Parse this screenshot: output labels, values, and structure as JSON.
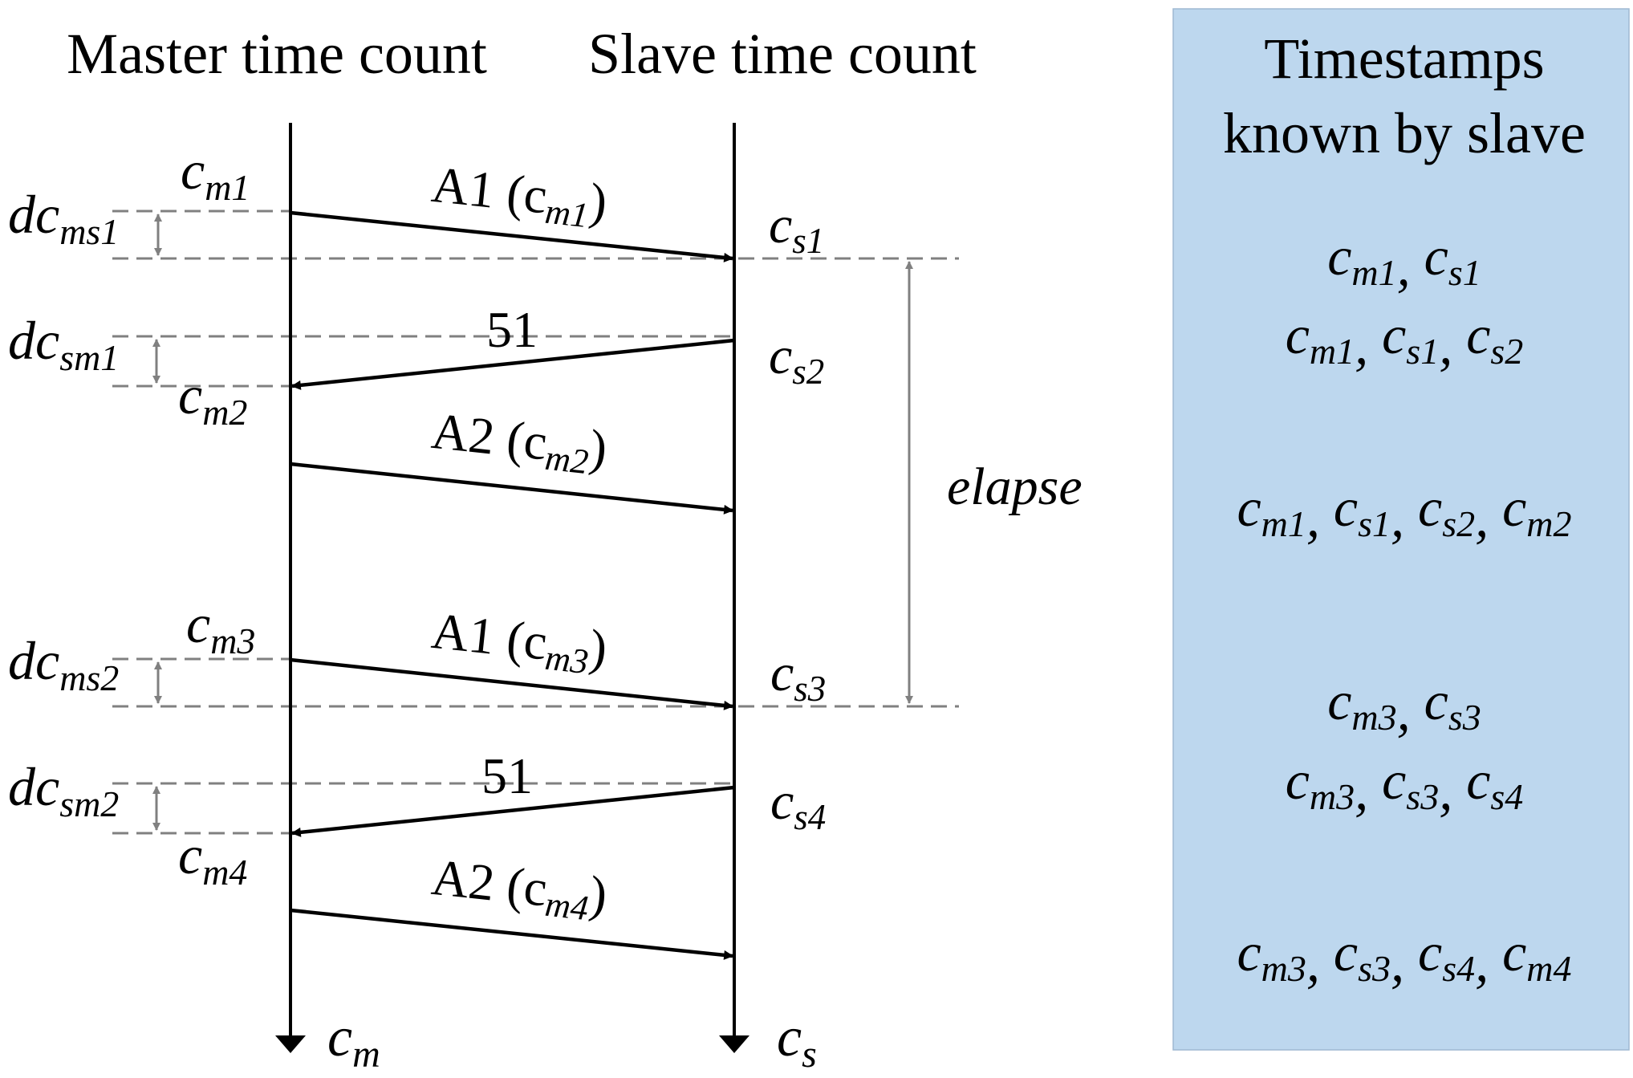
{
  "headers": {
    "master": "Master time count",
    "slave": "Slave time count"
  },
  "panel": {
    "title_line1": "Timestamps",
    "title_line2": "known by slave",
    "fill": "#bdd7ee",
    "rows": [
      [
        [
          "c",
          "m1"
        ],
        [
          "c",
          "s1"
        ]
      ],
      [
        [
          "c",
          "m1"
        ],
        [
          "c",
          "s1"
        ],
        [
          "c",
          "s2"
        ]
      ],
      [
        [
          "c",
          "m1"
        ],
        [
          "c",
          "s1"
        ],
        [
          "c",
          "s2"
        ],
        [
          "c",
          "m2"
        ]
      ],
      [
        [
          "c",
          "m3"
        ],
        [
          "c",
          "s3"
        ]
      ],
      [
        [
          "c",
          "m3"
        ],
        [
          "c",
          "s3"
        ],
        [
          "c",
          "s4"
        ]
      ],
      [
        [
          "c",
          "m3"
        ],
        [
          "c",
          "s3"
        ],
        [
          "c",
          "s4"
        ],
        [
          "c",
          "m4"
        ]
      ]
    ]
  },
  "axes": {
    "master_end": {
      "base": "c",
      "sub": "m"
    },
    "slave_end": {
      "base": "c",
      "sub": "s"
    }
  },
  "messages": [
    {
      "name": "A1",
      "arg_base": "c",
      "arg_sub": "m1",
      "direction": "to-slave"
    },
    {
      "name": "51",
      "direction": "to-master"
    },
    {
      "name": "A2",
      "arg_base": "c",
      "arg_sub": "m2",
      "direction": "to-slave"
    },
    {
      "name": "A1",
      "arg_base": "c",
      "arg_sub": "m3",
      "direction": "to-slave"
    },
    {
      "name": "51",
      "direction": "to-master"
    },
    {
      "name": "A2",
      "arg_base": "c",
      "arg_sub": "m4",
      "direction": "to-slave"
    }
  ],
  "master_stamps": [
    {
      "base": "c",
      "sub": "m1"
    },
    {
      "base": "c",
      "sub": "m2"
    },
    {
      "base": "c",
      "sub": "m3"
    },
    {
      "base": "c",
      "sub": "m4"
    }
  ],
  "slave_stamps": [
    {
      "base": "c",
      "sub": "s1"
    },
    {
      "base": "c",
      "sub": "s2"
    },
    {
      "base": "c",
      "sub": "s3"
    },
    {
      "base": "c",
      "sub": "s4"
    }
  ],
  "delays": [
    {
      "base": "dc",
      "sub": "ms1"
    },
    {
      "base": "dc",
      "sub": "sm1"
    },
    {
      "base": "dc",
      "sub": "ms2"
    },
    {
      "base": "dc",
      "sub": "sm2"
    }
  ],
  "elapse_label": "elapse"
}
